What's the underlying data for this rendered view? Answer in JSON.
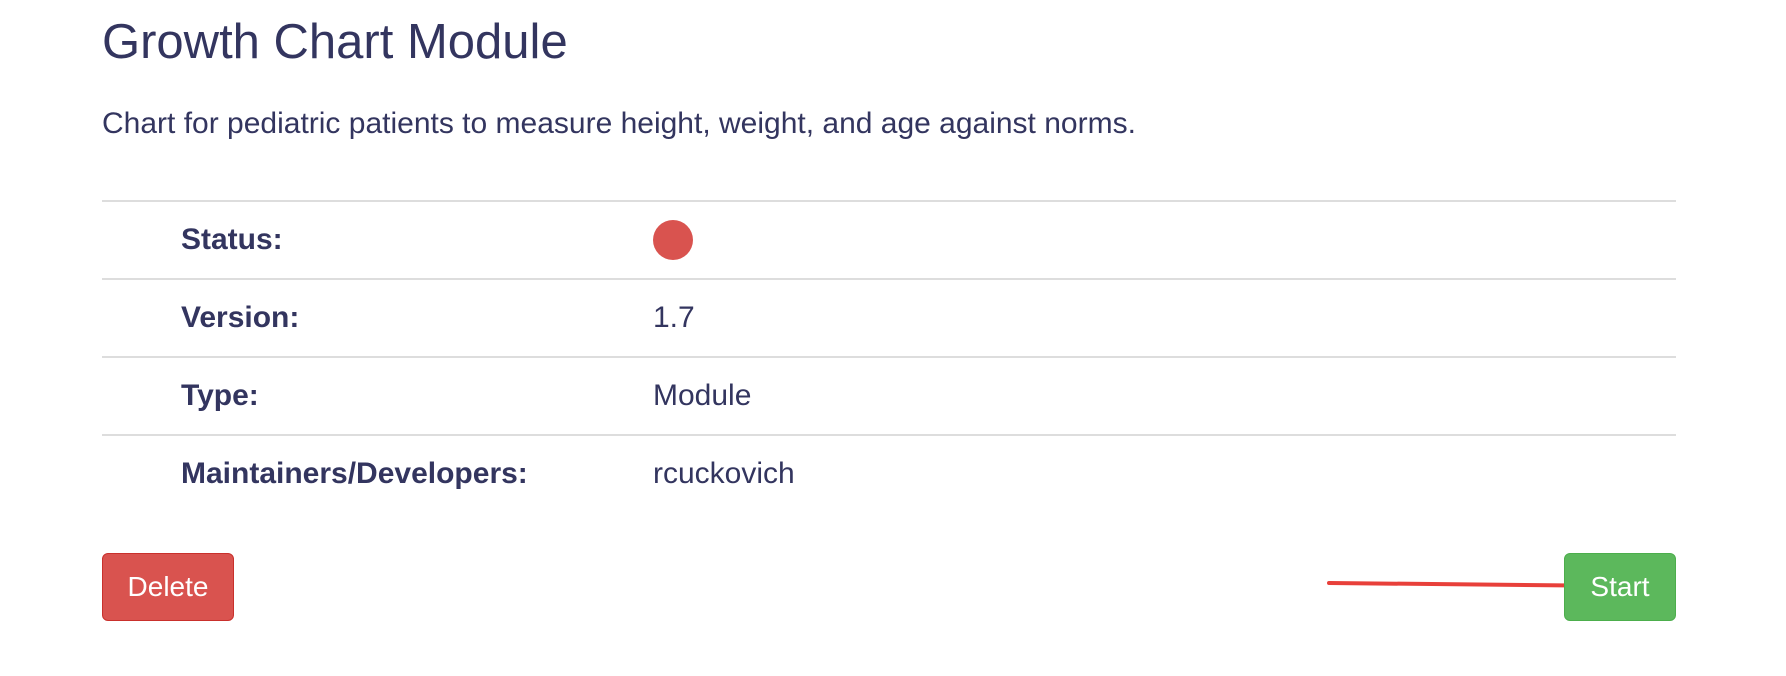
{
  "module": {
    "title": "Growth Chart Module",
    "description": "Chart for pediatric patients to measure height, weight, and age against norms."
  },
  "details": {
    "status_label": "Status:",
    "status_color": "#d9534f",
    "version_label": "Version:",
    "version_value": "1.7",
    "type_label": "Type:",
    "type_value": "Module",
    "maintainers_label": "Maintainers/Developers:",
    "maintainers_value": "rcuckovich"
  },
  "actions": {
    "delete_label": "Delete",
    "delete_color": "#d9534f",
    "start_label": "Start",
    "start_color": "#5cb85c"
  },
  "annotation": {
    "arrow_color": "#e8403a",
    "arrow_icon": "arrow-right-icon"
  }
}
